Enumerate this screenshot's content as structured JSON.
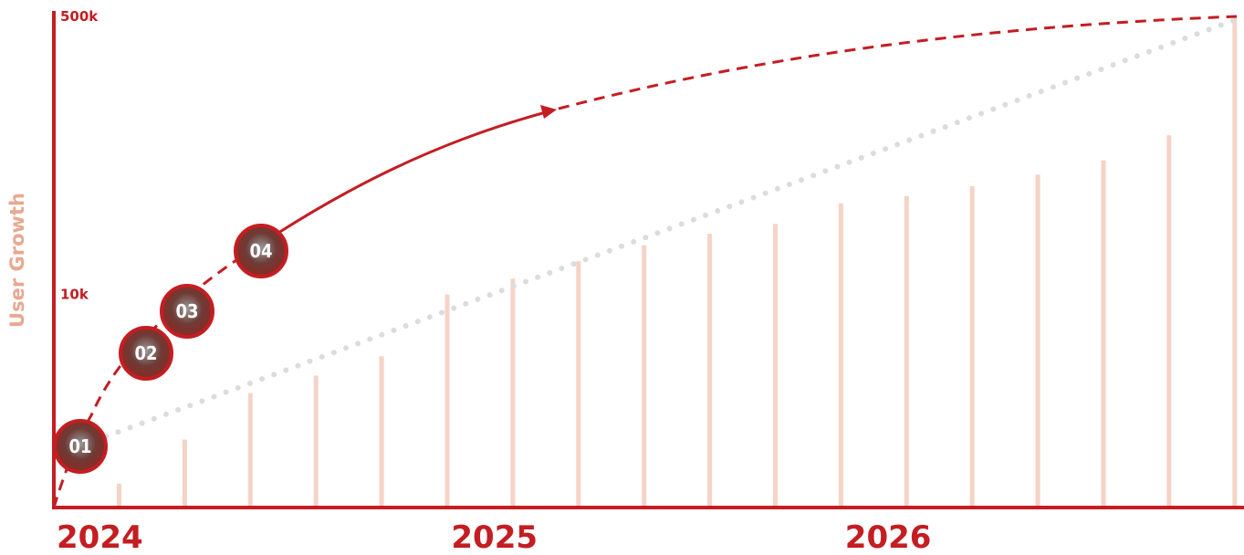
{
  "chart_data": {
    "type": "bar",
    "ylabel": "User Growth",
    "xlabel": "",
    "title": "",
    "y_scale": "log",
    "ylim": [
      500,
      500000
    ],
    "y_ticks": [
      {
        "value": 10000,
        "label": "10k"
      },
      {
        "value": 500000,
        "label": "500k"
      }
    ],
    "x_ticks": [
      {
        "index": 0,
        "label": "2024"
      },
      {
        "index": 6,
        "label": "2025"
      },
      {
        "index": 12,
        "label": "2026"
      }
    ],
    "bar_values": [
      700,
      1300,
      2500,
      3200,
      4200,
      10000,
      12500,
      16000,
      20000,
      23500,
      27000,
      36000,
      40000,
      46000,
      54000,
      66000,
      94000,
      500000
    ],
    "trend_line": {
      "style": "dotted",
      "color": "#dcdcdc",
      "from": 1200,
      "to": 480000
    },
    "growth_curve": {
      "style": "solid-then-dashed",
      "color": "#c41d22",
      "from": 500,
      "to": 500000
    },
    "markers": [
      "01",
      "02",
      "03",
      "04"
    ],
    "colors": {
      "axis": "#c41d22",
      "bar": "#f5d3c6",
      "ylabel": "#e8a890",
      "marker_fill": "#8b2a24",
      "marker_ring": "#c41d22"
    }
  }
}
